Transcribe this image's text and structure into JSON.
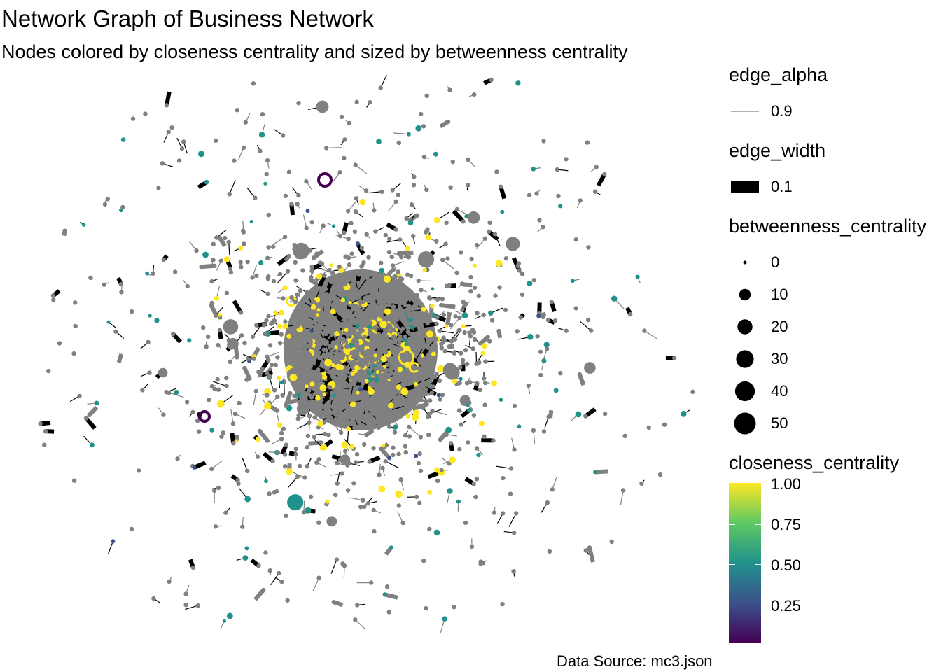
{
  "chart_data": {
    "type": "network",
    "title": "Network Graph of Business Network",
    "subtitle": "Nodes colored by closeness centrality and sized by betweenness centrality",
    "caption": "Data Source: mc3.json",
    "edge_color": "#808080",
    "node_default_color": "#808080",
    "legends": {
      "edge_alpha": {
        "title": "edge_alpha",
        "entries": [
          "0.9"
        ]
      },
      "edge_width": {
        "title": "edge_width",
        "entries": [
          "0.1"
        ]
      },
      "betweenness_centrality": {
        "title": "betweenness_centrality",
        "values": [
          0,
          10,
          20,
          30,
          40,
          50
        ],
        "labels": [
          "0",
          "10",
          "20",
          "30",
          "40",
          "50"
        ]
      },
      "closeness_centrality": {
        "title": "closeness_centrality",
        "range": [
          0,
          1
        ],
        "ticks": [
          0.25,
          0.5,
          0.75,
          1.0
        ],
        "tick_labels": [
          "0.25",
          "0.50",
          "0.75",
          "1.00"
        ],
        "palette": [
          "#440154",
          "#3b528b",
          "#21918c",
          "#5ec962",
          "#fde725"
        ]
      }
    }
  }
}
